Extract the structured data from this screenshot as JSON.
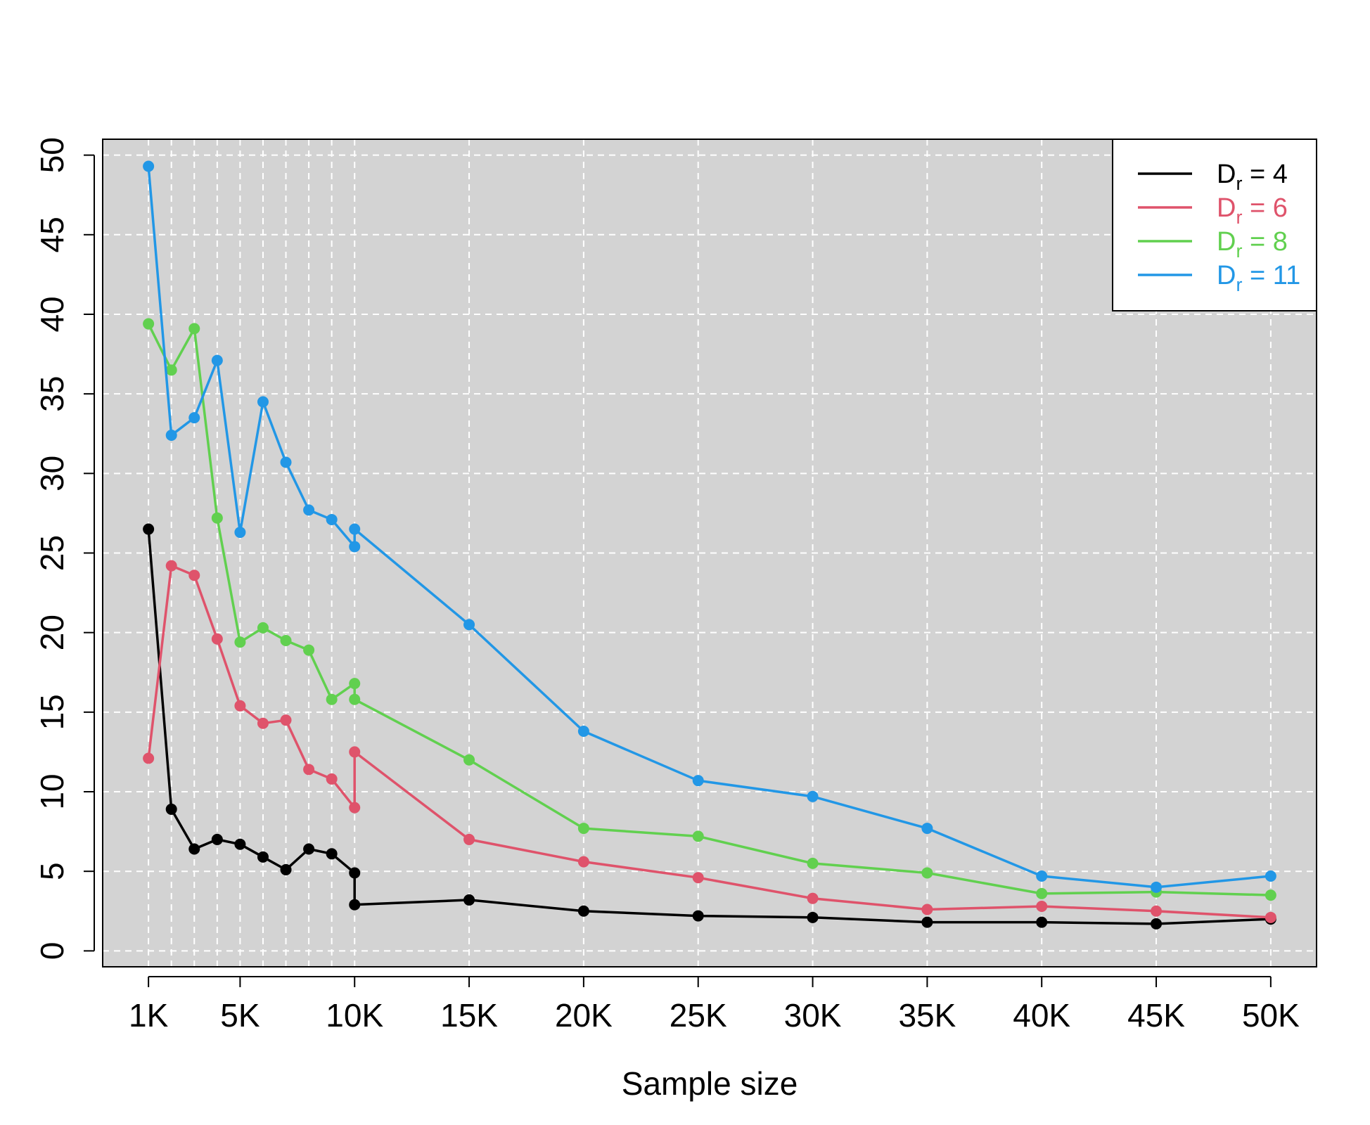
{
  "chart_data": {
    "type": "line",
    "title": "",
    "xlabel": "Sample size",
    "ylabel": "",
    "x": [
      1000,
      2000,
      3000,
      4000,
      5000,
      6000,
      7000,
      8000,
      9000,
      10000,
      10000,
      15000,
      20000,
      25000,
      30000,
      35000,
      40000,
      45000,
      50000
    ],
    "xlim": [
      -1000,
      52000
    ],
    "ylim": [
      -1,
      51
    ],
    "xticks": [
      1000,
      5000,
      10000,
      15000,
      20000,
      25000,
      30000,
      35000,
      40000,
      45000,
      50000
    ],
    "xtick_labels": [
      "1K",
      "5K",
      "10K",
      "15K",
      "20K",
      "25K",
      "30K",
      "35K",
      "40K",
      "45K",
      "50K"
    ],
    "yticks": [
      0,
      5,
      10,
      15,
      20,
      25,
      30,
      35,
      40,
      45,
      50
    ],
    "ytick_labels": [
      "0",
      "5",
      "10",
      "15",
      "20",
      "25",
      "30",
      "35",
      "40",
      "45",
      "50"
    ],
    "xgrid_minor": [
      2000,
      3000,
      4000,
      6000,
      7000,
      8000,
      9000
    ],
    "grid": true,
    "background": "#d3d3d3",
    "legend_position": "top-right",
    "series": [
      {
        "name": "D_r = 4",
        "legend_main": "D",
        "legend_sub": "r",
        "legend_rest": " = 4",
        "color": "#000000",
        "values": [
          26.5,
          8.9,
          6.4,
          7.0,
          6.7,
          5.9,
          5.1,
          6.4,
          6.1,
          4.9,
          2.9,
          3.2,
          2.5,
          2.2,
          2.1,
          1.8,
          1.8,
          1.7,
          2.0
        ]
      },
      {
        "name": "D_r = 6",
        "legend_main": "D",
        "legend_sub": "r",
        "legend_rest": " = 6",
        "color": "#df536b",
        "values": [
          12.1,
          24.2,
          23.6,
          19.6,
          15.4,
          14.3,
          14.5,
          11.4,
          10.8,
          9.0,
          12.5,
          7.0,
          5.6,
          4.6,
          3.3,
          2.6,
          2.8,
          2.5,
          2.1
        ]
      },
      {
        "name": "D_r = 8",
        "legend_main": "D",
        "legend_sub": "r",
        "legend_rest": " = 8",
        "color": "#61d04f",
        "values": [
          39.4,
          36.5,
          39.1,
          27.2,
          19.4,
          20.3,
          19.5,
          18.9,
          15.8,
          16.8,
          15.8,
          12.0,
          7.7,
          7.2,
          5.5,
          4.9,
          3.6,
          3.7,
          3.5
        ]
      },
      {
        "name": "D_r = 11",
        "legend_main": "D",
        "legend_sub": "r",
        "legend_rest": " = 11",
        "color": "#2297e6",
        "values": [
          49.3,
          32.4,
          33.5,
          37.1,
          26.3,
          34.5,
          30.7,
          27.7,
          27.1,
          25.4,
          26.5,
          20.5,
          13.8,
          10.7,
          9.7,
          7.7,
          4.7,
          4.0,
          4.7
        ]
      }
    ]
  }
}
